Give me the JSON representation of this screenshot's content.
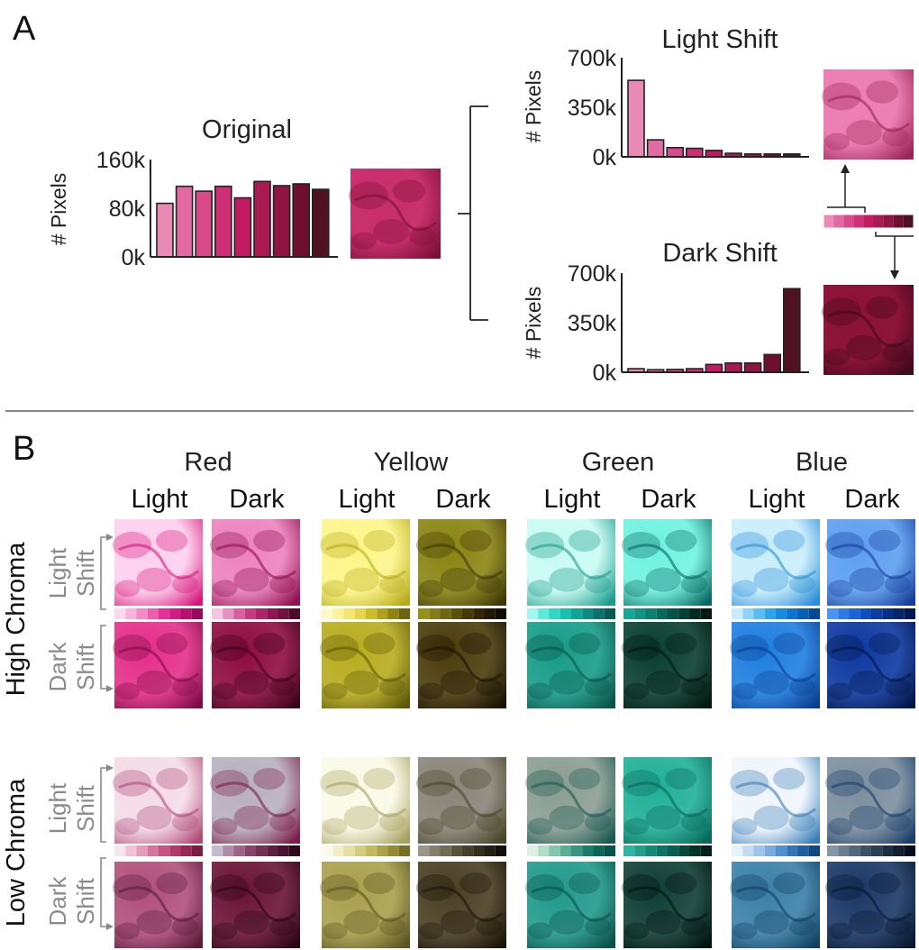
{
  "panel_a": {
    "label": "A",
    "original_title": "Original",
    "light_title": "Light Shift",
    "dark_title": "Dark Shift",
    "ylabel": "# Pixels"
  },
  "panel_b": {
    "label": "B",
    "hue_labels": [
      "Red",
      "Yellow",
      "Green",
      "Blue"
    ],
    "light_label": "Light",
    "dark_label": "Dark",
    "chroma_labels": [
      "High Chroma",
      "Low Chroma"
    ],
    "light_shift_words": [
      "Light",
      "Shift"
    ],
    "dark_shift_words": [
      "Dark",
      "Shift"
    ]
  },
  "chart_data": [
    {
      "type": "bar",
      "title": "Original",
      "ylabel": "# Pixels",
      "yticks": [
        "160k",
        "80k",
        "0k"
      ],
      "ylim": [
        0,
        160000
      ],
      "values": [
        88000,
        116000,
        108000,
        116000,
        97000,
        124000,
        117000,
        120000,
        111000
      ],
      "colors": [
        "#e98bb5",
        "#e26aa2",
        "#d94a8a",
        "#cf2f75",
        "#c21b62",
        "#a91a52",
        "#901542",
        "#6e0f30",
        "#501222"
      ]
    },
    {
      "type": "bar",
      "title": "Light Shift",
      "ylabel": "# Pixels",
      "yticks": [
        "700k",
        "350k",
        "0k"
      ],
      "ylim": [
        0,
        700000
      ],
      "values": [
        540000,
        120000,
        65000,
        60000,
        45000,
        25000,
        20000,
        20000,
        20000
      ],
      "colors": [
        "#e98bb5",
        "#e26aa2",
        "#d94a8a",
        "#cf2f75",
        "#c21b62",
        "#a91a52",
        "#901542",
        "#6e0f30",
        "#501222"
      ]
    },
    {
      "type": "bar",
      "title": "Dark Shift",
      "ylabel": "# Pixels",
      "yticks": [
        "700k",
        "350k",
        "0k"
      ],
      "ylim": [
        0,
        700000
      ],
      "values": [
        25000,
        18000,
        20000,
        25000,
        55000,
        65000,
        65000,
        125000,
        590000
      ],
      "colors": [
        "#e98bb5",
        "#e26aa2",
        "#d94a8a",
        "#cf2f75",
        "#c21b62",
        "#a91a52",
        "#901542",
        "#6e0f30",
        "#501222"
      ]
    }
  ],
  "colors": {
    "original_img": [
      "#c8306c",
      "#7a0f35"
    ],
    "light_img": [
      "#ec7fb3",
      "#9a2456"
    ],
    "dark_img": [
      "#8c1238",
      "#3e0a1c"
    ],
    "ramp_a": [
      "#e98bb5",
      "#e26aa2",
      "#d94a8a",
      "#cf2f75",
      "#c21b62",
      "#a91a52",
      "#901542",
      "#6e0f30",
      "#501222"
    ],
    "grid": {
      "high_light": [
        [
          "#ffd0ee",
          "#d6187a"
        ],
        [
          "#ec82bd",
          "#8e0f4e"
        ],
        [
          "#fdf588",
          "#b8ac1d"
        ],
        [
          "#8a8412",
          "#3e3808"
        ],
        [
          "#c8fbf2",
          "#1a9c8c"
        ],
        [
          "#6ff2e0",
          "#0a6860"
        ],
        [
          "#c9eefc",
          "#2a8ed8"
        ],
        [
          "#5c9ff0",
          "#183e9c"
        ]
      ],
      "high_dark": [
        [
          "#e42e8a",
          "#7e0c44"
        ],
        [
          "#8e0c40",
          "#3c0418"
        ],
        [
          "#b8ac1e",
          "#5e5808"
        ],
        [
          "#4a3c0a",
          "#1a1204"
        ],
        [
          "#169c88",
          "#0a5448"
        ],
        [
          "#083e30",
          "#021810"
        ],
        [
          "#1e7ee0",
          "#0a3e90"
        ],
        [
          "#0c38a0",
          "#041648"
        ]
      ],
      "low_light": [
        [
          "#f4dce6",
          "#b04a78"
        ],
        [
          "#b8b0be",
          "#7c1c48"
        ],
        [
          "#fafae6",
          "#a8a060"
        ],
        [
          "#888478",
          "#4a4428"
        ],
        [
          "#8a9e92",
          "#1a5a50"
        ],
        [
          "#20b098",
          "#086858"
        ],
        [
          "#f0f6fc",
          "#3a7eb8"
        ],
        [
          "#7c8e9e",
          "#1a3e6a"
        ]
      ],
      "low_dark": [
        [
          "#b0507c",
          "#5a1a38"
        ],
        [
          "#6a1434",
          "#2a0614"
        ],
        [
          "#a8a04c",
          "#5a5420"
        ],
        [
          "#4a3e22",
          "#1a1408"
        ],
        [
          "#209a8c",
          "#0a5048"
        ],
        [
          "#0e3e34",
          "#021410"
        ],
        [
          "#3a80a8",
          "#124060"
        ],
        [
          "#1a3866",
          "#081830"
        ]
      ]
    },
    "ramps": {
      "high": [
        [
          "#fdd8ee",
          "#f9b4dc",
          "#f48ac6",
          "#ee5cae",
          "#e63098",
          "#d41a84",
          "#b80f70",
          "#980b5c"
        ],
        [
          "#f6c6e0",
          "#e890c0",
          "#d8609e",
          "#c83a80",
          "#ad2468",
          "#901652",
          "#70103e",
          "#4e0a2a"
        ],
        [
          "#fefac8",
          "#fcf39a",
          "#f4e670",
          "#e6d44a",
          "#ccbc28",
          "#aea21a",
          "#8e8410",
          "#6c6408"
        ],
        [
          "#98901a",
          "#847c14",
          "#6e6610",
          "#5a500c",
          "#46380a",
          "#342608",
          "#241806",
          "#140c04"
        ],
        [
          "#9ff7ee",
          "#5eead8",
          "#2ed8c4",
          "#18c0ae",
          "#10a696",
          "#0c8c80",
          "#0a726a",
          "#085a54"
        ],
        [
          "#1aa896",
          "#129484",
          "#0c8070",
          "#086a5c",
          "#065448",
          "#044034",
          "#022c22",
          "#021a14"
        ],
        [
          "#c6ecfd",
          "#8ed4fa",
          "#58bdf4",
          "#2ea4ec",
          "#168ce0",
          "#0c74cc",
          "#085eb0",
          "#064892"
        ],
        [
          "#4a96f2",
          "#2c7ae6",
          "#1a62d6",
          "#104ec0",
          "#0a3ea4",
          "#063088",
          "#04246c",
          "#021850"
        ]
      ],
      "low": [
        [
          "#f8e4ec",
          "#f0c2d4",
          "#e49cb8",
          "#d6769c",
          "#c65480",
          "#b03c6a",
          "#962856",
          "#7a1c44"
        ],
        [
          "#c4bcc8",
          "#b08ca6",
          "#9c6488",
          "#88446c",
          "#723054",
          "#5c2040",
          "#46142e",
          "#30081c"
        ],
        [
          "#fcfae8",
          "#f2eec8",
          "#e4dea4",
          "#d4cc80",
          "#c2b862",
          "#aca248",
          "#928a34",
          "#767024"
        ],
        [
          "#9a968c",
          "#848070",
          "#6e6a54",
          "#58543c",
          "#44402a",
          "#32301c",
          "#222012",
          "#121008"
        ],
        [
          "#dcf0e4",
          "#b0dcc8",
          "#84c4ac",
          "#5aac94",
          "#369480",
          "#1a7c6c",
          "#0c6658",
          "#085246"
        ],
        [
          "#30b4a0",
          "#22a08c",
          "#168a78",
          "#0c7464",
          "#085e50",
          "#06483c",
          "#04322a",
          "#021e18"
        ],
        [
          "#e8f2fa",
          "#c4dcf2",
          "#9ec4e8",
          "#78aadc",
          "#5290cc",
          "#3476b6",
          "#205e9c",
          "#124880"
        ],
        [
          "#8494a4",
          "#6a7c92",
          "#52667e",
          "#3e5068",
          "#2c3e54",
          "#1e2e42",
          "#121e30",
          "#08101e"
        ]
      ]
    }
  }
}
